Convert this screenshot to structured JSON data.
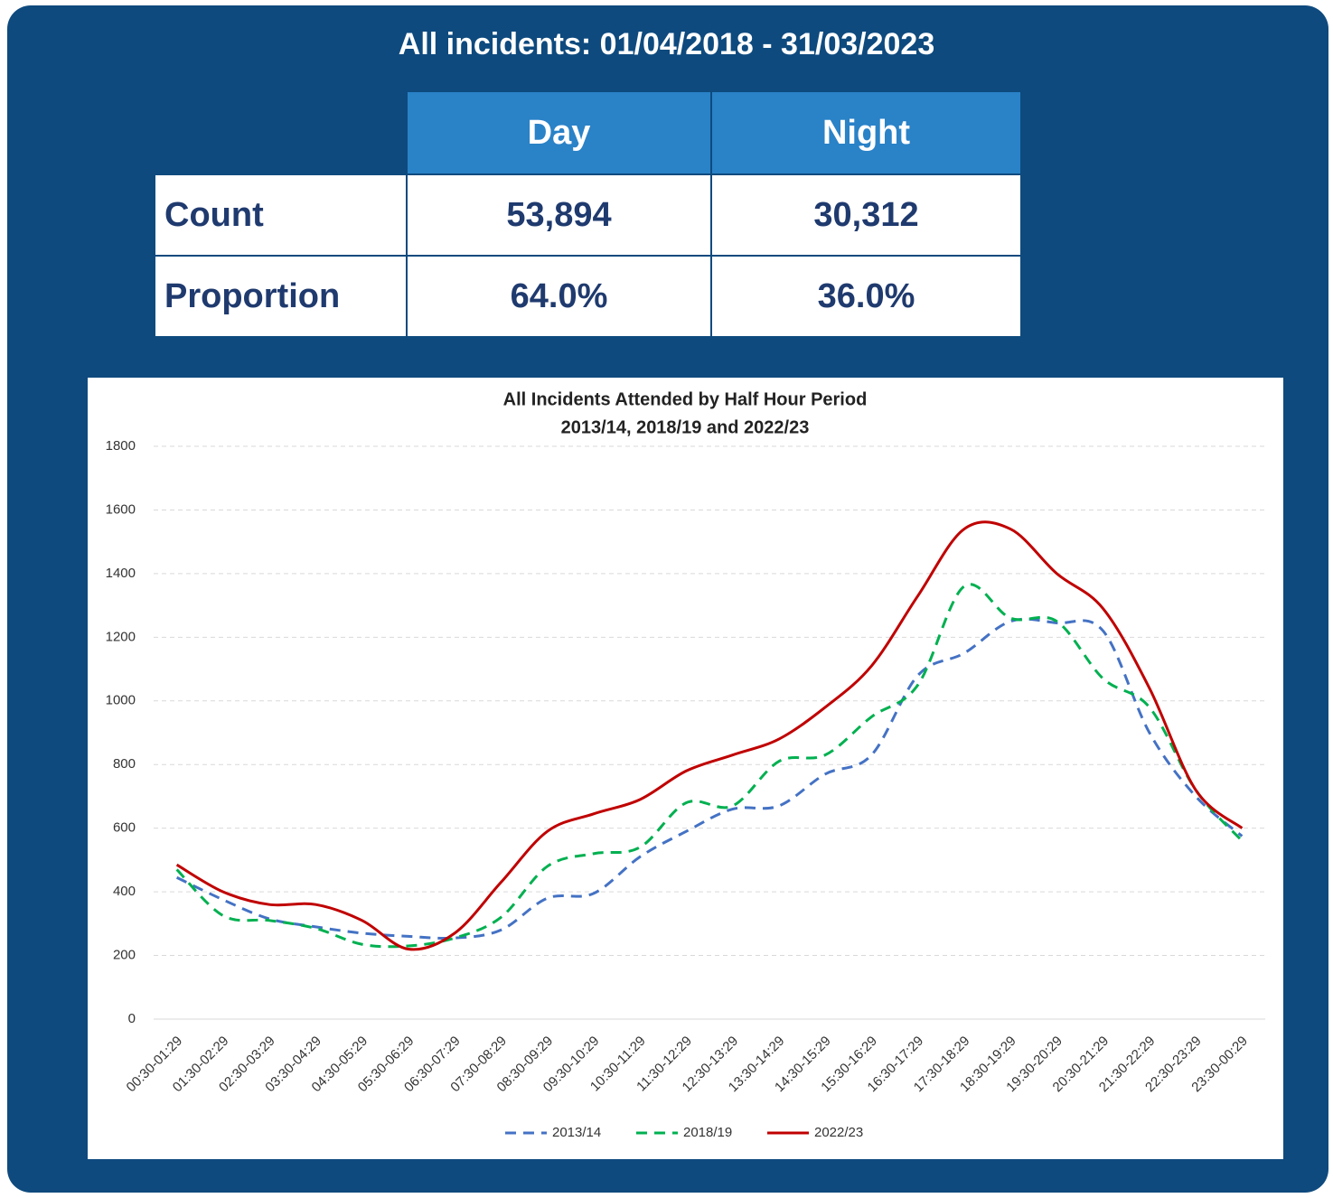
{
  "header": {
    "title": "All incidents: 01/04/2018 - 31/03/2023"
  },
  "table": {
    "columns": [
      "Day",
      "Night"
    ],
    "rows": [
      {
        "label": "Count",
        "cells": [
          "53,894",
          "30,312"
        ]
      },
      {
        "label": "Proportion",
        "cells": [
          "64.0%",
          "36.0%"
        ]
      }
    ]
  },
  "chart_data": {
    "type": "line",
    "title": "All Incidents Attended by Half Hour Period",
    "subtitle": "2013/14, 2018/19 and 2022/23",
    "categories": [
      "00:30-01:29",
      "01:30-02:29",
      "02:30-03:29",
      "03:30-04:29",
      "04:30-05:29",
      "05:30-06:29",
      "06:30-07:29",
      "07:30-08:29",
      "08:30-09:29",
      "09:30-10:29",
      "10:30-11:29",
      "11:30-12:29",
      "12:30-13:29",
      "13:30-14:29",
      "14:30-15:29",
      "15:30-16:29",
      "16:30-17:29",
      "17:30-18:29",
      "18:30-19:29",
      "19:30-20:29",
      "20:30-21:29",
      "21:30-22:29",
      "22:30-23:29",
      "23:30-00:29"
    ],
    "series": [
      {
        "name": "2013/14",
        "color": "#4472c4",
        "dash": true,
        "values": [
          445,
          375,
          315,
          290,
          270,
          260,
          255,
          280,
          380,
          395,
          510,
          590,
          660,
          670,
          770,
          830,
          1080,
          1150,
          1250,
          1245,
          1220,
          900,
          700,
          575
        ]
      },
      {
        "name": "2018/19",
        "color": "#00b050",
        "dash": true,
        "values": [
          470,
          325,
          310,
          285,
          235,
          230,
          255,
          320,
          480,
          520,
          540,
          680,
          670,
          810,
          830,
          950,
          1050,
          1360,
          1260,
          1250,
          1070,
          980,
          720,
          560
        ]
      },
      {
        "name": "2022/23",
        "color": "#c00000",
        "dash": false,
        "values": [
          485,
          400,
          360,
          360,
          310,
          220,
          270,
          430,
          590,
          645,
          690,
          780,
          830,
          880,
          980,
          1110,
          1330,
          1540,
          1540,
          1400,
          1290,
          1040,
          720,
          600
        ]
      }
    ],
    "ylim": [
      0,
      1800
    ],
    "yticks": [
      0,
      200,
      400,
      600,
      800,
      1000,
      1200,
      1400,
      1600,
      1800
    ],
    "grid": true
  }
}
